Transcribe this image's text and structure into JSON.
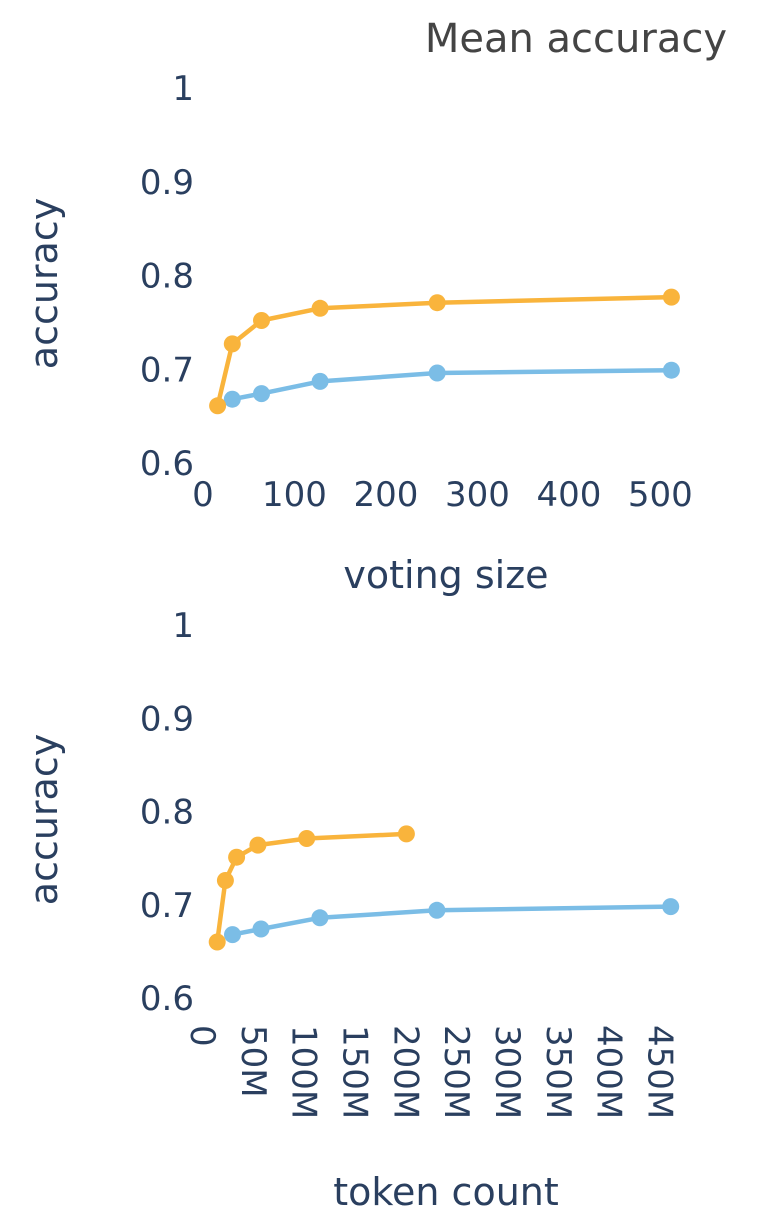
{
  "title": "Mean accuracy",
  "chart_data": [
    {
      "type": "line",
      "xlabel": "voting size",
      "ylabel": "accuracy",
      "xlim": [
        0,
        528
      ],
      "ylim": [
        0.6,
        1.0
      ],
      "x_ticks": [
        "0",
        "100",
        "200",
        "300",
        "400",
        "500"
      ],
      "x_tick_values": [
        0,
        100,
        200,
        300,
        400,
        500
      ],
      "y_ticks": [
        "0.6",
        "0.7",
        "0.8",
        "0.9",
        "1"
      ],
      "y_tick_values": [
        0.6,
        0.7,
        0.8,
        0.9,
        1.0
      ],
      "series": [
        {
          "color": "#7bbde6",
          "x": [
            32,
            64,
            128,
            256,
            512
          ],
          "y": [
            0.668,
            0.674,
            0.687,
            0.696,
            0.699
          ]
        },
        {
          "color": "#f9b43c",
          "x": [
            16,
            32,
            64,
            128,
            256,
            512
          ],
          "y": [
            0.661,
            0.727,
            0.752,
            0.765,
            0.771,
            0.777
          ]
        }
      ]
    },
    {
      "type": "line",
      "xlabel": "token count",
      "ylabel": "accuracy",
      "xlim": [
        0,
        475000000
      ],
      "ylim": [
        0.6,
        1.0
      ],
      "x_ticks": [
        "0",
        "50M",
        "100M",
        "150M",
        "200M",
        "250M",
        "300M",
        "350M",
        "400M",
        "450M"
      ],
      "x_tick_values": [
        0,
        50000000,
        100000000,
        150000000,
        200000000,
        250000000,
        300000000,
        350000000,
        400000000,
        450000000
      ],
      "y_ticks": [
        "0.6",
        "0.7",
        "0.8",
        "0.9",
        "1"
      ],
      "y_tick_values": [
        0.6,
        0.7,
        0.8,
        0.9,
        1.0
      ],
      "series": [
        {
          "color": "#7bbde6",
          "x": [
            29000000,
            57000000,
            115000000,
            230000000,
            460000000
          ],
          "y": [
            0.668,
            0.674,
            0.686,
            0.694,
            0.698
          ]
        },
        {
          "color": "#f9b43c",
          "x": [
            14000000,
            22000000,
            33000000,
            54000000,
            102000000,
            200000000
          ],
          "y": [
            0.66,
            0.726,
            0.751,
            0.764,
            0.771,
            0.776
          ]
        }
      ]
    }
  ]
}
